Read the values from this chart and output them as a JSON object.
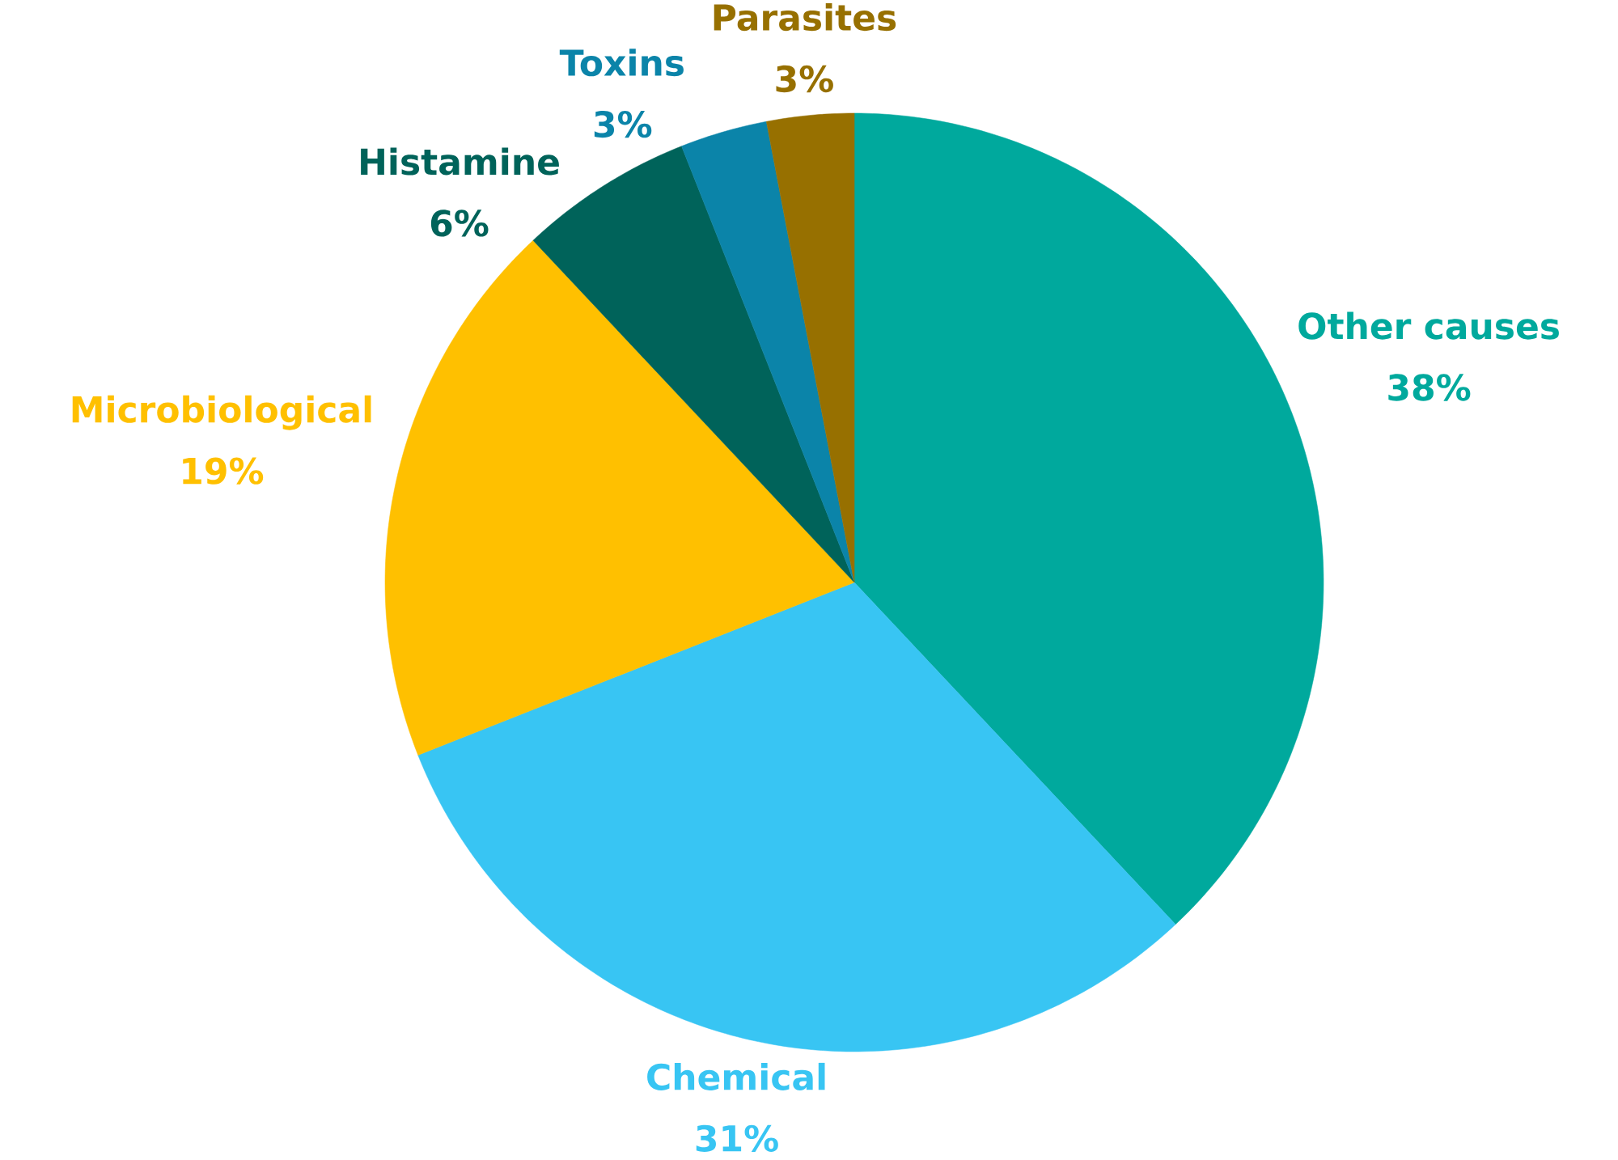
{
  "chart_data": {
    "type": "pie",
    "categories": [
      "Other causes",
      "Chemical",
      "Microbiological",
      "Histamine",
      "Toxins",
      "Parasites"
    ],
    "values": [
      38,
      31,
      19,
      6,
      3,
      3
    ],
    "colors": [
      "#00a99d",
      "#38c5f3",
      "#ffc000",
      "#00635a",
      "#0b84a9",
      "#977000"
    ],
    "value_labels": [
      "38%",
      "31%",
      "19%",
      "6%",
      "3%",
      "3%"
    ]
  }
}
